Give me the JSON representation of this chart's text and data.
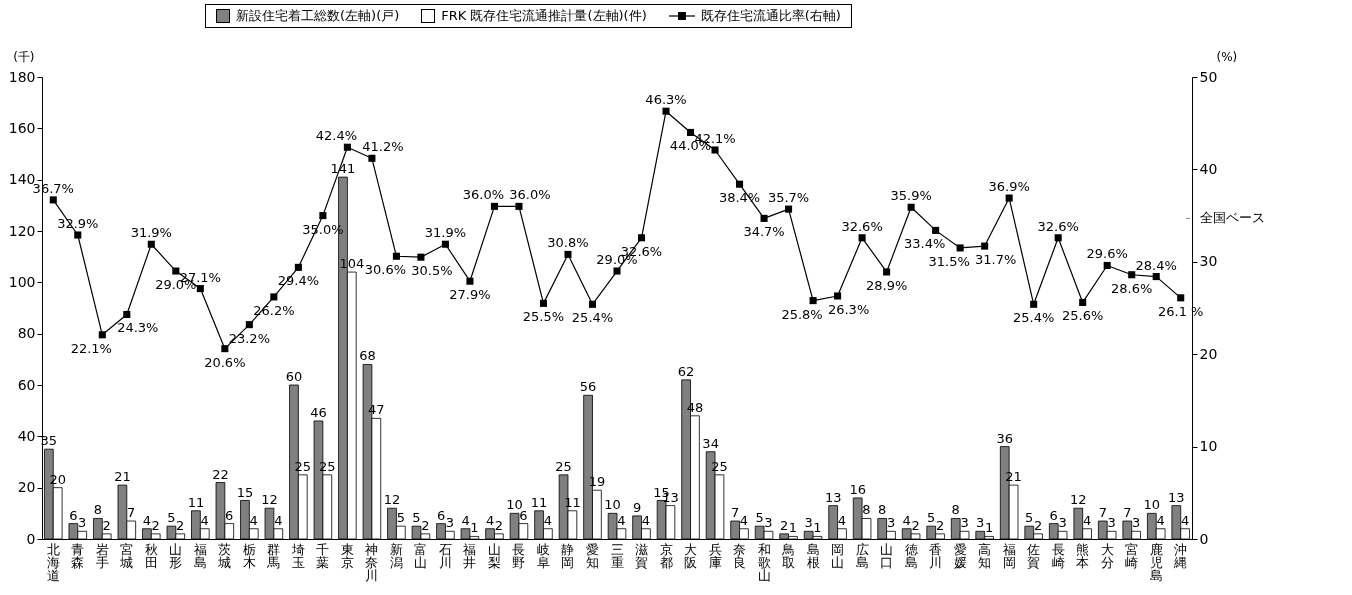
{
  "chart_data": {
    "type": "bar",
    "ylabel": "(千)",
    "y2label": "(%)",
    "categories": [
      "北海道",
      "青森",
      "岩手",
      "宮城",
      "秋田",
      "山形",
      "福島",
      "茨城",
      "栃木",
      "群馬",
      "埼玉",
      "千葉",
      "東京",
      "神奈川",
      "新潟",
      "富山",
      "石川",
      "福井",
      "山梨",
      "長野",
      "岐阜",
      "静岡",
      "愛知",
      "三重",
      "滋賀",
      "京都",
      "大阪",
      "兵庫",
      "奈良",
      "和歌山",
      "鳥取",
      "島根",
      "岡山",
      "広島",
      "山口",
      "徳島",
      "香川",
      "愛媛",
      "高知",
      "福岡",
      "佐賀",
      "長崎",
      "熊本",
      "大分",
      "宮崎",
      "鹿児島",
      "沖縄"
    ],
    "series": [
      {
        "name": "新設住宅着工総数(左軸)(戸)",
        "color": "#808080",
        "values": [
          35,
          6,
          8,
          21,
          4,
          5,
          11,
          22,
          15,
          12,
          60,
          46,
          141,
          68,
          12,
          5,
          6,
          4,
          4,
          10,
          11,
          25,
          56,
          10,
          9,
          15,
          62,
          34,
          7,
          5,
          2,
          3,
          13,
          16,
          8,
          4,
          5,
          8,
          3,
          36,
          5,
          6,
          12,
          7,
          7,
          10,
          13
        ]
      },
      {
        "name": "FRK 既存住宅流通推計量(左軸)(件)",
        "color": "#ffffff",
        "values": [
          20,
          3,
          2,
          7,
          2,
          2,
          4,
          6,
          4,
          4,
          25,
          25,
          104,
          47,
          5,
          2,
          3,
          1,
          2,
          6,
          4,
          11,
          19,
          4,
          4,
          13,
          48,
          25,
          4,
          3,
          1,
          1,
          4,
          8,
          3,
          2,
          2,
          3,
          1,
          21,
          2,
          3,
          4,
          3,
          3,
          4,
          4
        ]
      },
      {
        "name": "既存住宅流通比率(右軸)",
        "type": "line",
        "axis": "y2",
        "color": "#000000",
        "marker": "square",
        "values": [
          36.7,
          32.9,
          22.1,
          24.3,
          31.9,
          29.0,
          27.1,
          20.6,
          23.2,
          26.2,
          29.4,
          35.0,
          42.4,
          41.2,
          30.6,
          30.5,
          31.9,
          27.9,
          36.0,
          36.0,
          25.5,
          30.8,
          25.4,
          29.0,
          32.6,
          46.3,
          44.0,
          42.1,
          38.4,
          34.7,
          35.7,
          25.8,
          26.3,
          32.6,
          28.9,
          35.9,
          33.4,
          31.5,
          31.7,
          36.9,
          25.4,
          32.6,
          25.6,
          29.6,
          28.6,
          28.4,
          26.1
        ],
        "value_labels": [
          "36.7%",
          "32.9%",
          "22.1%",
          "24.3%",
          "31.9%",
          "29.0%",
          "27.1%",
          "20.6%",
          "23.2%",
          "26.2%",
          "29.4%",
          "35.0%",
          "42.4%",
          "41.2%",
          "30.6%",
          "30.5%",
          "31.9%",
          "27.9%",
          "36.0%",
          "36.0%",
          "25.5%",
          "30.8%",
          "25.4%",
          "29.0%",
          "32.6%",
          "46.3%",
          "44.0%",
          "42.1%",
          "38.4%",
          "34.7%",
          "35.7%",
          "25.8%",
          "26.3%",
          "32.6%",
          "28.9%",
          "35.9%",
          "33.4%",
          "31.5%",
          "31.7%",
          "36.9%",
          "25.4%",
          "32.6%",
          "25.6%",
          "29.6%",
          "28.6%",
          "28.4%",
          "26.1 %"
        ]
      }
    ],
    "data_labels": true,
    "ylim": [
      0,
      180
    ],
    "yticks": [
      0,
      20,
      40,
      60,
      80,
      100,
      120,
      140,
      160,
      180
    ],
    "y2lim": [
      0,
      50
    ],
    "y2ticks": [
      0,
      10,
      20,
      30,
      40,
      50
    ],
    "ref_lines": [
      {
        "axis": "y2",
        "value": 34.7,
        "label": "全国ベース"
      }
    ],
    "legend": "top",
    "grid": false
  }
}
